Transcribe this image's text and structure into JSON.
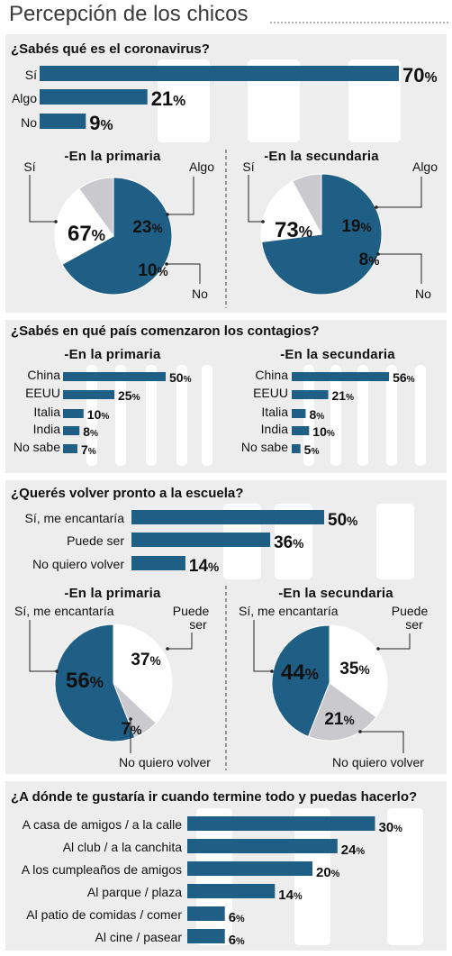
{
  "header": {
    "title": "Percepción de los chicos"
  },
  "colors": {
    "primary": "#1f5f86",
    "light_gray": "#c9c9ce",
    "white": "#ffffff",
    "panel_bg": "#ededed",
    "track": "#ffffff",
    "divider": "#444444"
  },
  "chart_data": [
    {
      "id": "coronavirus_total",
      "type": "bar",
      "orientation": "horizontal",
      "title": "¿Sabés qué es el coronavirus?",
      "categories": [
        "Sí",
        "Algo",
        "No"
      ],
      "values": [
        70,
        21,
        9
      ],
      "unit": "%"
    },
    {
      "id": "coronavirus_primaria",
      "type": "pie",
      "title": "-En la primaria",
      "labels": [
        "Sí",
        "Algo",
        "No"
      ],
      "values": [
        67,
        23,
        10
      ],
      "colors": [
        "#1f5f86",
        "#ffffff",
        "#c9c9ce"
      ],
      "unit": "%"
    },
    {
      "id": "coronavirus_secundaria",
      "type": "pie",
      "title": "-En la secundaria",
      "labels": [
        "Sí",
        "Algo",
        "No"
      ],
      "values": [
        73,
        19,
        8
      ],
      "colors": [
        "#1f5f86",
        "#ffffff",
        "#c9c9ce"
      ],
      "unit": "%"
    },
    {
      "id": "pais_primaria",
      "type": "bar",
      "orientation": "horizontal",
      "title": "-En la primaria",
      "categories": [
        "China",
        "EEUU",
        "Italia",
        "India",
        "No sabe"
      ],
      "values": [
        50,
        25,
        10,
        8,
        7
      ],
      "unit": "%"
    },
    {
      "id": "pais_secundaria",
      "type": "bar",
      "orientation": "horizontal",
      "title": "-En la secundaria",
      "categories": [
        "China",
        "EEUU",
        "Italia",
        "India",
        "No sabe"
      ],
      "values": [
        56,
        21,
        8,
        10,
        5
      ],
      "unit": "%"
    },
    {
      "id": "escuela_total",
      "type": "bar",
      "orientation": "horizontal",
      "title": "¿Querés volver pronto a la escuela?",
      "categories": [
        "Sí, me encantaría",
        "Puede ser",
        "No quiero volver"
      ],
      "values": [
        50,
        36,
        14
      ],
      "unit": "%"
    },
    {
      "id": "escuela_primaria",
      "type": "pie",
      "title": "-En la primaria",
      "labels": [
        "Sí, me encantaría",
        "Puede ser",
        "No quiero volver"
      ],
      "values": [
        56,
        37,
        7
      ],
      "colors": [
        "#1f5f86",
        "#ffffff",
        "#c9c9ce"
      ],
      "unit": "%"
    },
    {
      "id": "escuela_secundaria",
      "type": "pie",
      "title": "-En la secundaria",
      "labels": [
        "Sí, me encantaría",
        "Puede ser",
        "No quiero volver"
      ],
      "values": [
        44,
        35,
        21
      ],
      "colors": [
        "#1f5f86",
        "#ffffff",
        "#c9c9ce"
      ],
      "unit": "%"
    },
    {
      "id": "destino",
      "type": "bar",
      "orientation": "horizontal",
      "title": "¿A dónde te gustaría ir cuando termine todo y puedas hacerlo?",
      "categories": [
        "A casa de amigos / a la calle",
        "Al club / a la canchita",
        "A los cumpleaños de amigos",
        "Al parque / plaza",
        "Al patio de comidas / comer",
        "Al cine / pasear"
      ],
      "values": [
        30,
        24,
        20,
        14,
        6,
        6
      ],
      "unit": "%"
    }
  ],
  "section_titles": {
    "pais": "¿Sabés en qué país comenzaron los contagios?"
  }
}
